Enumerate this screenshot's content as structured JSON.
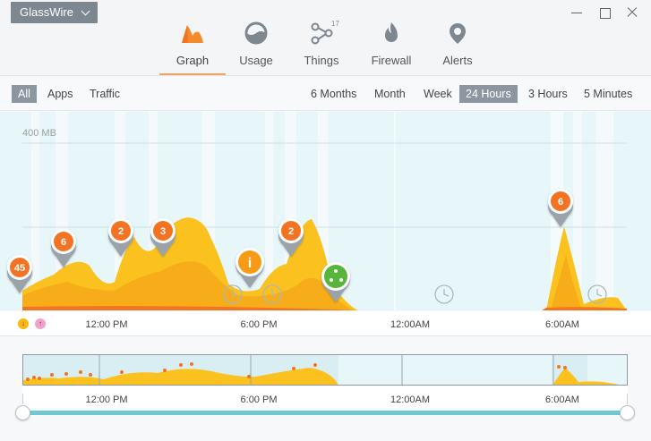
{
  "app": {
    "title": "GlassWire"
  },
  "tabs": [
    {
      "label": "Graph",
      "icon": "graph-icon",
      "active": true
    },
    {
      "label": "Usage",
      "icon": "usage-icon"
    },
    {
      "label": "Things",
      "icon": "things-icon",
      "badge": "17"
    },
    {
      "label": "Firewall",
      "icon": "firewall-icon"
    },
    {
      "label": "Alerts",
      "icon": "alerts-icon"
    }
  ],
  "filters": {
    "left": [
      "All",
      "Apps",
      "Traffic"
    ],
    "left_selected": "All",
    "ranges": [
      "6 Months",
      "Month",
      "Week",
      "24 Hours",
      "3 Hours",
      "5 Minutes"
    ],
    "range_selected": "24 Hours"
  },
  "graph": {
    "y_label": "400 MB",
    "x_ticks": [
      "12:00 PM",
      "6:00 PM",
      "12:00AM",
      "6:00AM"
    ],
    "markers": [
      "45",
      "6",
      "2",
      "3",
      "i",
      "2",
      "",
      "6"
    ]
  },
  "overview": {
    "x_ticks": [
      "12:00 PM",
      "6:00 PM",
      "12:00AM",
      "6:00AM"
    ]
  },
  "legend": {
    "download_icon": "download-arrow-icon",
    "upload_icon": "upload-arrow-icon"
  },
  "colors": {
    "accent": "#f4a261",
    "traffic": "#fcc42a",
    "marker": "#f37321",
    "info": "#f79a15",
    "app": "#59b53b"
  }
}
